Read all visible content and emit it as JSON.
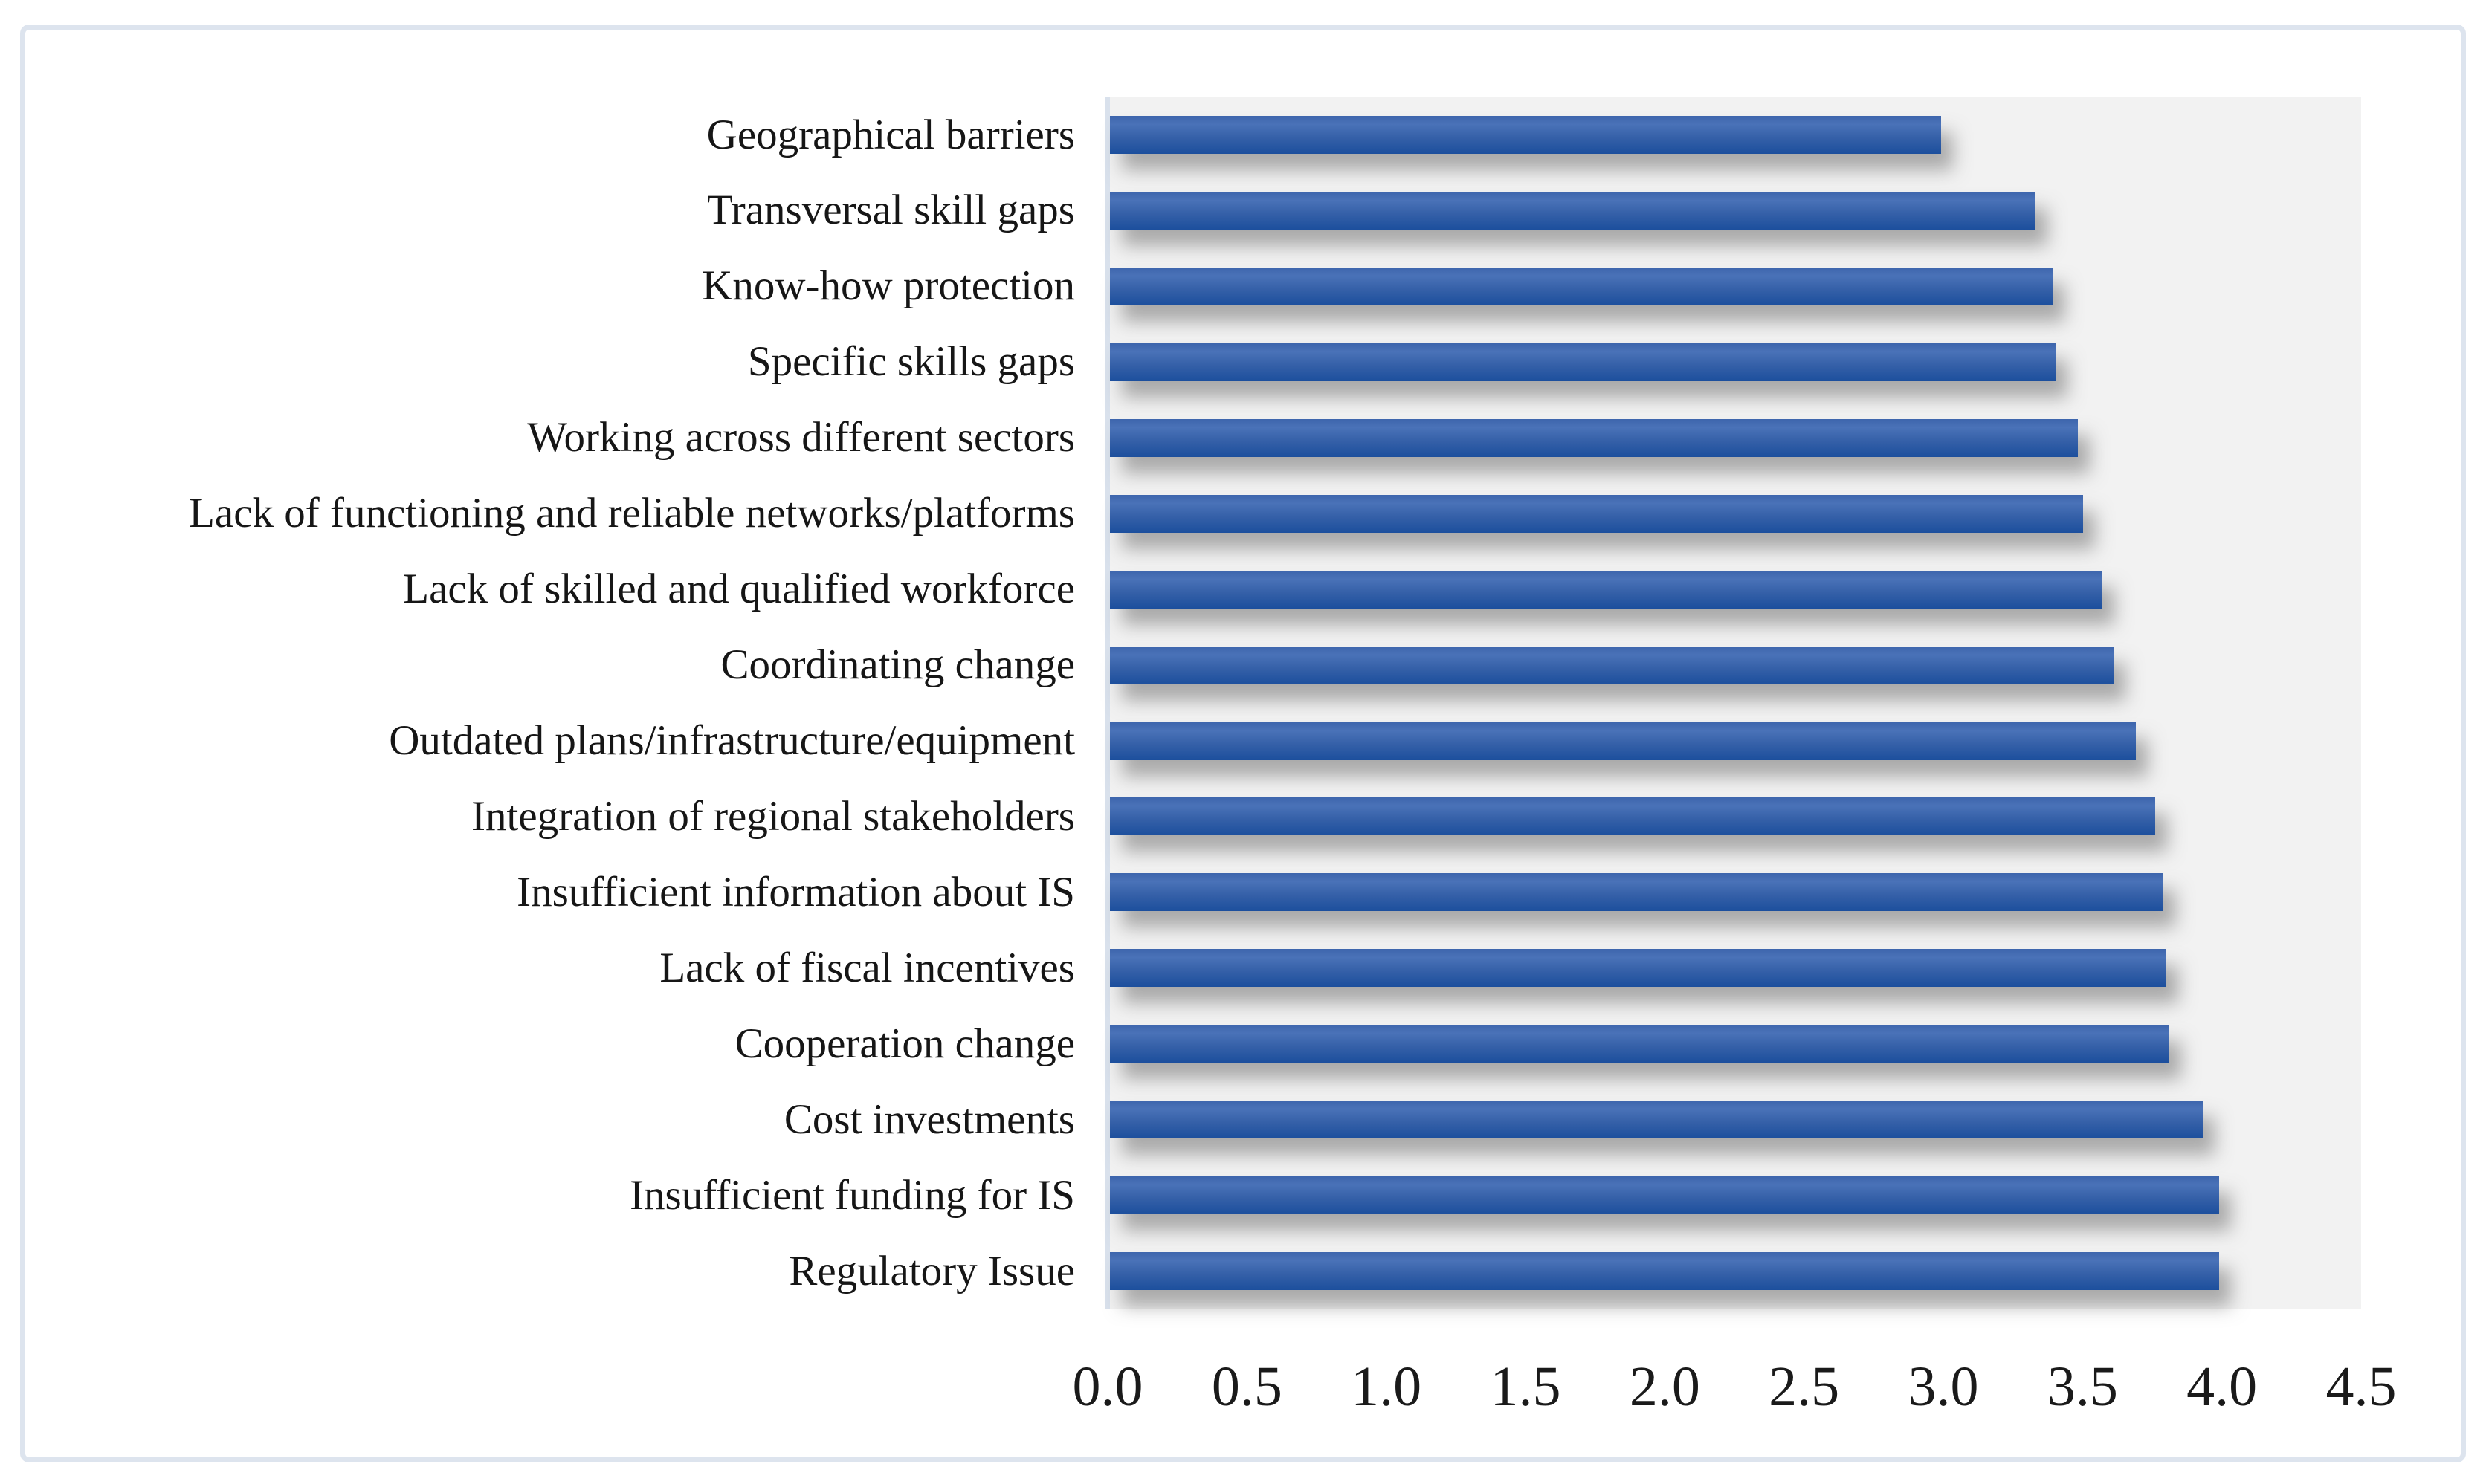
{
  "figure": {
    "background": "#ffffff",
    "frame_border_color": "#dde4ee",
    "plot_background": "#f2f2f2",
    "axis_line_color": "#d9e1ec",
    "bar_gradient": [
      "#3d65ac",
      "#4a72b8",
      "#3560a8",
      "#1c4f9d"
    ],
    "bar_shadow_color": "#9a9a9a",
    "text_color": "#161616"
  },
  "chart_data": {
    "type": "bar",
    "orientation": "horizontal",
    "grid": false,
    "legend": false,
    "xlim": [
      0,
      4.5
    ],
    "x_ticks": [
      "0.0",
      "0.5",
      "1.0",
      "1.5",
      "2.0",
      "2.5",
      "3.0",
      "3.5",
      "4.0",
      "4.5"
    ],
    "categories": [
      "Geographical barriers",
      "Transversal skill gaps",
      "Know-how protection",
      "Specific skills gaps",
      "Working across different sectors",
      "Lack of functioning and reliable networks/platforms",
      "Lack of skilled and qualified workforce",
      "Coordinating change",
      "Outdated plans/infrastructure/equipment",
      "Integration of regional stakeholders",
      "Insufficient information about IS",
      "Lack of fiscal incentives",
      "Cooperation change",
      "Cost investments",
      "Insufficient funding for IS",
      "Regulatory Issue"
    ],
    "values": [
      2.99,
      3.33,
      3.39,
      3.4,
      3.48,
      3.5,
      3.57,
      3.61,
      3.69,
      3.76,
      3.79,
      3.8,
      3.81,
      3.93,
      3.99,
      3.99
    ]
  }
}
